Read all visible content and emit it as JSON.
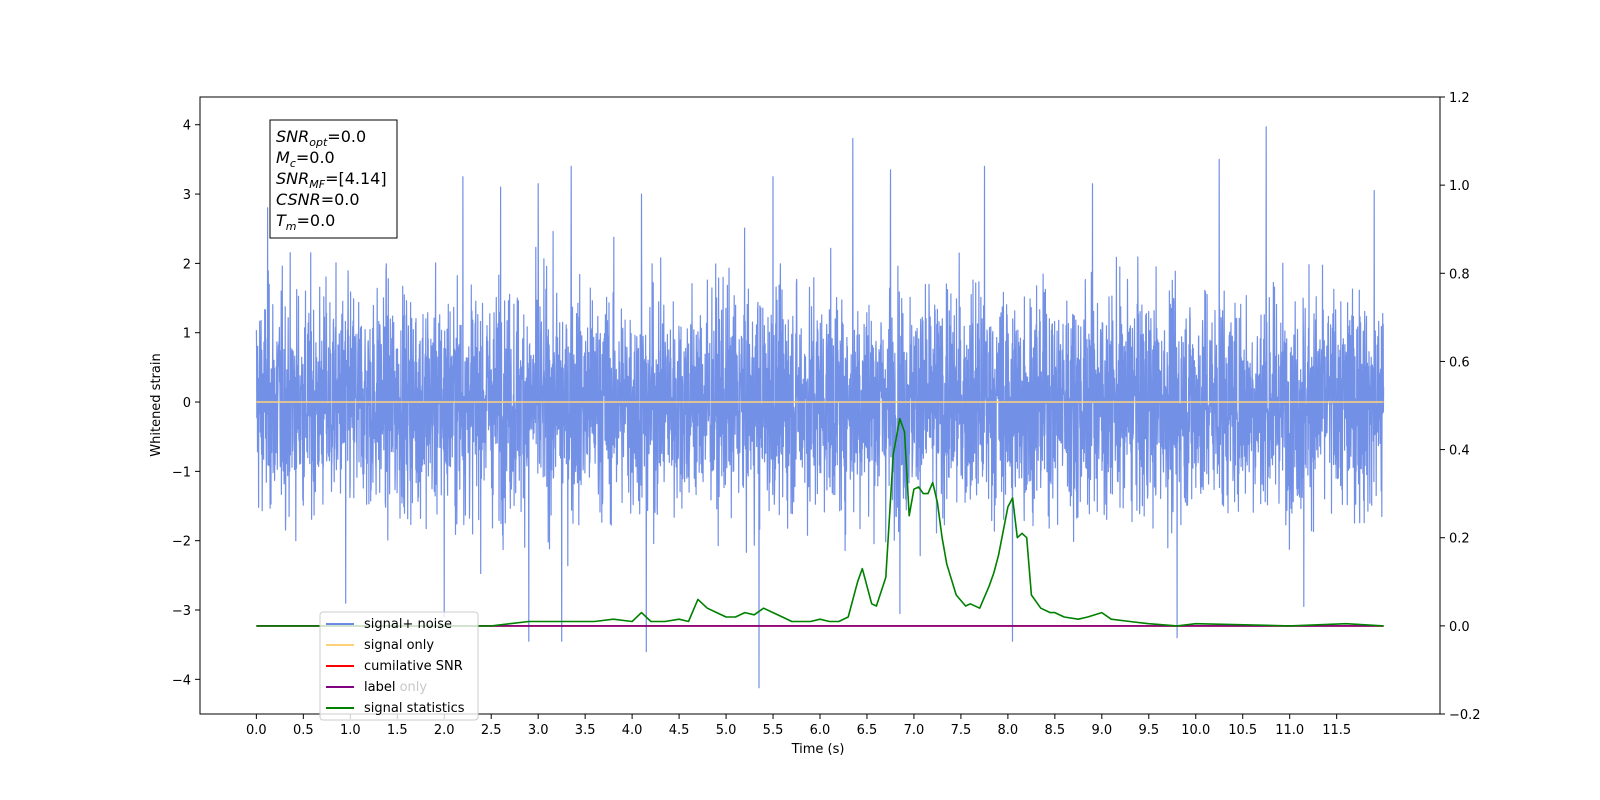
{
  "chart_data": {
    "type": "line",
    "xlabel": "Time (s)",
    "ylabel": "Whitened strain",
    "xlim": [
      -0.6,
      12.6
    ],
    "ylim": [
      -4.5,
      4.4
    ],
    "y2lim": [
      -0.2,
      1.2
    ],
    "x_ticks": [
      0.0,
      0.5,
      1.0,
      1.5,
      2.0,
      2.5,
      3.0,
      3.5,
      4.0,
      4.5,
      5.0,
      5.5,
      6.0,
      6.5,
      7.0,
      7.5,
      8.0,
      8.5,
      9.0,
      9.5,
      10.0,
      10.5,
      11.0,
      11.5
    ],
    "x_tick_labels": [
      "0.0",
      "0.5",
      "1.0",
      "1.5",
      "2.0",
      "2.5",
      "3.0",
      "3.5",
      "4.0",
      "4.5",
      "5.0",
      "5.5",
      "6.0",
      "6.5",
      "7.0",
      "7.5",
      "8.0",
      "8.5",
      "9.0",
      "9.5",
      "10.0",
      "10.5",
      "11.0",
      "11.5"
    ],
    "y_ticks": [
      4,
      3,
      2,
      1,
      0,
      -1,
      -2,
      -3,
      -4
    ],
    "y_tick_labels": [
      "4",
      "3",
      "2",
      "1",
      "0",
      "−1",
      "−2",
      "−3",
      "−4"
    ],
    "y2_ticks": [
      1.2,
      1.0,
      0.8,
      0.6,
      0.4,
      0.2,
      0.0,
      -0.2
    ],
    "y2_tick_labels": [
      "1.2",
      "1.0",
      "0.8",
      "0.6",
      "0.4",
      "0.2",
      "0.0",
      "−0.2"
    ],
    "noise_envelope": {
      "x_range": [
        0.0,
        12.0
      ],
      "upper_typical": 2.2,
      "lower_typical": -2.1,
      "peaks": [
        {
          "x": 0.12,
          "y": 2.8
        },
        {
          "x": 0.95,
          "y": 2.85
        },
        {
          "x": 2.2,
          "y": 3.25
        },
        {
          "x": 2.6,
          "y": 3.1
        },
        {
          "x": 3.0,
          "y": 3.15
        },
        {
          "x": 3.35,
          "y": 3.4
        },
        {
          "x": 4.1,
          "y": 3.0
        },
        {
          "x": 5.5,
          "y": 3.25
        },
        {
          "x": 6.35,
          "y": 3.8
        },
        {
          "x": 6.75,
          "y": 3.35
        },
        {
          "x": 7.75,
          "y": 3.4
        },
        {
          "x": 8.9,
          "y": 3.15
        },
        {
          "x": 10.25,
          "y": 3.5
        },
        {
          "x": 10.75,
          "y": 3.97
        },
        {
          "x": 11.9,
          "y": 3.05
        }
      ],
      "troughs": [
        {
          "x": 0.95,
          "y": -2.9
        },
        {
          "x": 2.0,
          "y": -3.1
        },
        {
          "x": 2.9,
          "y": -3.45
        },
        {
          "x": 3.25,
          "y": -3.45
        },
        {
          "x": 4.15,
          "y": -3.6
        },
        {
          "x": 5.35,
          "y": -4.12
        },
        {
          "x": 6.85,
          "y": -3.05
        },
        {
          "x": 8.05,
          "y": -3.45
        },
        {
          "x": 9.8,
          "y": -3.4
        },
        {
          "x": 11.15,
          "y": -2.95
        }
      ]
    },
    "series": [
      {
        "name": "signal+ noise",
        "color": "#6b8ae6",
        "axis": "left"
      },
      {
        "name": "signal only",
        "color": "#ffd27a",
        "axis": "left",
        "x": [
          0,
          12
        ],
        "y": [
          0,
          0
        ]
      },
      {
        "name": "cumilative SNR",
        "color": "#ff0000",
        "axis": "right",
        "x": [
          0,
          12
        ],
        "y": [
          0,
          0
        ]
      },
      {
        "name": "label",
        "color": "#800080",
        "axis": "right",
        "x": [
          0,
          12
        ],
        "y": [
          0,
          0
        ]
      },
      {
        "name": "signal statistics",
        "color": "#008000",
        "axis": "right",
        "x": [
          0.0,
          2.5,
          2.7,
          2.9,
          3.1,
          3.3,
          3.5,
          3.6,
          3.8,
          4.0,
          4.1,
          4.2,
          4.35,
          4.5,
          4.6,
          4.7,
          4.8,
          4.9,
          5.0,
          5.1,
          5.2,
          5.3,
          5.4,
          5.5,
          5.6,
          5.7,
          5.8,
          5.9,
          6.0,
          6.1,
          6.2,
          6.3,
          6.4,
          6.45,
          6.55,
          6.6,
          6.7,
          6.78,
          6.85,
          6.9,
          6.95,
          7.0,
          7.05,
          7.1,
          7.15,
          7.2,
          7.25,
          7.3,
          7.35,
          7.45,
          7.55,
          7.6,
          7.7,
          7.8,
          7.85,
          7.9,
          8.0,
          8.05,
          8.1,
          8.15,
          8.2,
          8.25,
          8.35,
          8.45,
          8.5,
          8.6,
          8.75,
          8.85,
          9.0,
          9.1,
          9.3,
          9.5,
          9.8,
          10.0,
          11.0,
          11.6,
          12.0
        ],
        "y": [
          0.0,
          0.0,
          0.005,
          0.01,
          0.01,
          0.01,
          0.01,
          0.01,
          0.015,
          0.01,
          0.03,
          0.01,
          0.01,
          0.015,
          0.01,
          0.06,
          0.04,
          0.03,
          0.02,
          0.02,
          0.03,
          0.025,
          0.04,
          0.03,
          0.02,
          0.01,
          0.01,
          0.01,
          0.015,
          0.01,
          0.01,
          0.02,
          0.1,
          0.13,
          0.05,
          0.045,
          0.11,
          0.39,
          0.47,
          0.44,
          0.25,
          0.31,
          0.315,
          0.3,
          0.3,
          0.325,
          0.28,
          0.2,
          0.14,
          0.07,
          0.045,
          0.05,
          0.04,
          0.09,
          0.12,
          0.16,
          0.27,
          0.29,
          0.2,
          0.21,
          0.2,
          0.07,
          0.04,
          0.03,
          0.03,
          0.02,
          0.015,
          0.02,
          0.03,
          0.015,
          0.01,
          0.005,
          0.0,
          0.005,
          0.0,
          0.005,
          0.0
        ]
      }
    ],
    "annotation": [
      {
        "base": "SNR",
        "sub": "opt",
        "value": "=0.0"
      },
      {
        "base": "M",
        "sub": "c",
        "value": "=0.0"
      },
      {
        "base": "SNR",
        "sub": "MF",
        "value": "=[4.14]"
      },
      {
        "base": "CSNR",
        "sub": "",
        "value": "=0.0"
      },
      {
        "base": "T",
        "sub": "m",
        "value": "=0.0"
      }
    ],
    "legend": {
      "position": "lower-left",
      "entries": [
        "signal+ noise",
        "signal only",
        "cumilative SNR",
        "label",
        "signal statistics"
      ],
      "hidden_text": "label only"
    },
    "grid": false
  }
}
